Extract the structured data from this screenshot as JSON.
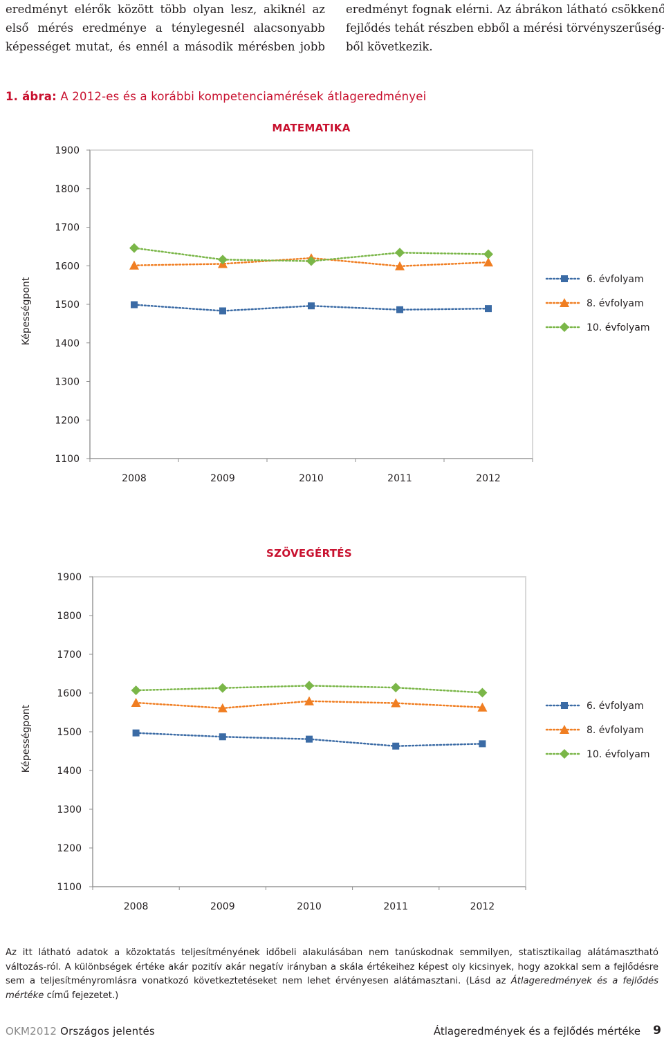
{
  "text": {
    "left_lines": [
      "eredményt elérők között több olyan lesz, akiknél az",
      "első mérés eredménye a ténylegesnél alacsonyabb",
      "képességet mutat, és ennél a második mérésben jobb"
    ],
    "right_lines": [
      "eredményt fognak elérni. Az ábrákon látható csökkenő",
      "fejlődés tehát részben ebből a mérési törvényszerűség-",
      "ből következik."
    ]
  },
  "figure_caption": {
    "number": "1. ábra:",
    "text": "A 2012-es és a korábbi kompetenciamérések átlageredményei"
  },
  "chart_data": [
    {
      "type": "line",
      "title": "MATEMATIKA",
      "ylabel": "Képességpont",
      "xlabel": "",
      "categories": [
        "2008",
        "2009",
        "2010",
        "2011",
        "2012"
      ],
      "ylim": [
        1100,
        1900
      ],
      "yticks": [
        "1900",
        "1800",
        "1700",
        "1600",
        "1500",
        "1400",
        "1300",
        "1200",
        "1100"
      ],
      "legend_position": "right",
      "series": [
        {
          "name": "6. évfolyam",
          "values": [
            1499,
            1483,
            1496,
            1486,
            1489
          ],
          "color": "#3b6ba5",
          "marker": "square"
        },
        {
          "name": "8. évfolyam",
          "values": [
            1601,
            1605,
            1620,
            1599,
            1609
          ],
          "color": "#f07e22",
          "marker": "triangle"
        },
        {
          "name": "10. évfolyam",
          "values": [
            1646,
            1616,
            1612,
            1634,
            1630
          ],
          "color": "#7ab648",
          "marker": "diamond"
        }
      ]
    },
    {
      "type": "line",
      "title": "SZÖVEGÉRTÉS",
      "ylabel": "Képességpont",
      "xlabel": "",
      "categories": [
        "2008",
        "2009",
        "2010",
        "2011",
        "2012"
      ],
      "ylim": [
        1100,
        1900
      ],
      "yticks": [
        "1900",
        "1800",
        "1700",
        "1600",
        "1500",
        "1400",
        "1300",
        "1200",
        "1100"
      ],
      "legend_position": "right",
      "series": [
        {
          "name": "6. évfolyam",
          "values": [
            1497,
            1487,
            1481,
            1463,
            1469
          ],
          "color": "#3b6ba5",
          "marker": "square"
        },
        {
          "name": "8. évfolyam",
          "values": [
            1575,
            1561,
            1579,
            1574,
            1563
          ],
          "color": "#f07e22",
          "marker": "triangle"
        },
        {
          "name": "10. évfolyam",
          "values": [
            1607,
            1613,
            1619,
            1614,
            1601
          ],
          "color": "#7ab648",
          "marker": "diamond"
        }
      ]
    }
  ],
  "note": {
    "part1": "Az itt látható adatok a közoktatás teljesítményének időbeli alakulásában nem tanúskodnak semmilyen, statisztikailag alátámasztható változás-ról. A különbségek értéke akár pozitív akár negatív irányban a skála értékeihez képest oly kicsinyek, hogy azokkal sem a fejlődésre sem a teljesítményromlásra vonatkozó következtetéseket nem lehet érvényesen alátámasztani. (Lásd az ",
    "italic": "Átlageredmények és a fejlődés mértéke",
    "part2": " című fejezetet.)"
  },
  "footer": {
    "org": "OKM2012",
    "report": "Országos jelentés",
    "section": "Átlageredmények és a fejlődés mértéke",
    "page": "9"
  }
}
